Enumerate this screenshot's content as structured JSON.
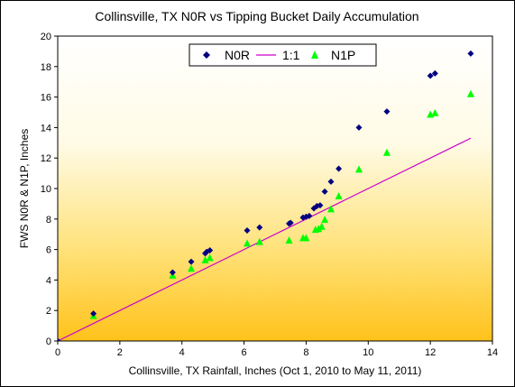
{
  "chart_data": {
    "type": "scatter",
    "title": "Collinsville, TX N0R vs Tipping Bucket Daily Accumulation",
    "xlabel": "Collinsville, TX Rainfall, Inches (Oct 1, 2010 to May 11, 2011)",
    "ylabel": "FWS N0R & N1P, Inches",
    "xlim": [
      0,
      14
    ],
    "ylim": [
      0,
      20
    ],
    "x_ticks": [
      "0",
      "2",
      "4",
      "6",
      "8",
      "10",
      "12",
      "14"
    ],
    "y_ticks": [
      "0",
      "2",
      "4",
      "6",
      "8",
      "10",
      "12",
      "14",
      "16",
      "18",
      "20"
    ],
    "grid": false,
    "background": "gradient-yellow-to-white",
    "legend": {
      "position": "top-center",
      "entries": [
        {
          "name": "N0R",
          "marker": "diamond",
          "color": "#000080"
        },
        {
          "name": "1:1",
          "marker": "line",
          "color": "#CC00CC"
        },
        {
          "name": "N1P",
          "marker": "triangle",
          "color": "#00FF00"
        }
      ]
    },
    "series": [
      {
        "name": "N0R",
        "marker": "diamond",
        "color": "#000080",
        "points": [
          [
            0,
            0
          ],
          [
            1.15,
            1.8
          ],
          [
            3.7,
            4.5
          ],
          [
            4.3,
            5.2
          ],
          [
            4.75,
            5.75
          ],
          [
            4.8,
            5.85
          ],
          [
            4.9,
            5.95
          ],
          [
            6.1,
            7.25
          ],
          [
            6.5,
            7.45
          ],
          [
            7.45,
            7.7
          ],
          [
            7.5,
            7.75
          ],
          [
            7.9,
            8.1
          ],
          [
            8.0,
            8.15
          ],
          [
            8.1,
            8.2
          ],
          [
            8.25,
            8.7
          ],
          [
            8.35,
            8.85
          ],
          [
            8.45,
            8.9
          ],
          [
            8.6,
            9.8
          ],
          [
            8.8,
            10.45
          ],
          [
            9.05,
            11.3
          ],
          [
            9.7,
            14.0
          ],
          [
            10.6,
            15.05
          ],
          [
            12.0,
            17.4
          ],
          [
            12.15,
            17.55
          ],
          [
            13.3,
            18.85
          ]
        ]
      },
      {
        "name": "N1P",
        "marker": "triangle",
        "color": "#00FF00",
        "points": [
          [
            1.15,
            1.65
          ],
          [
            3.7,
            4.3
          ],
          [
            4.3,
            4.75
          ],
          [
            4.75,
            5.3
          ],
          [
            4.9,
            5.45
          ],
          [
            6.1,
            6.4
          ],
          [
            6.5,
            6.5
          ],
          [
            7.45,
            6.6
          ],
          [
            7.9,
            6.75
          ],
          [
            8.0,
            6.75
          ],
          [
            8.3,
            7.3
          ],
          [
            8.4,
            7.35
          ],
          [
            8.5,
            7.5
          ],
          [
            8.6,
            7.95
          ],
          [
            8.8,
            8.65
          ],
          [
            9.05,
            9.5
          ],
          [
            9.7,
            11.25
          ],
          [
            10.6,
            12.35
          ],
          [
            12.0,
            14.85
          ],
          [
            12.15,
            14.95
          ],
          [
            13.3,
            16.2
          ]
        ]
      },
      {
        "name": "1:1",
        "marker": "line",
        "color": "#CC00CC",
        "points": [
          [
            0,
            0
          ],
          [
            13.3,
            13.3
          ]
        ]
      }
    ]
  }
}
